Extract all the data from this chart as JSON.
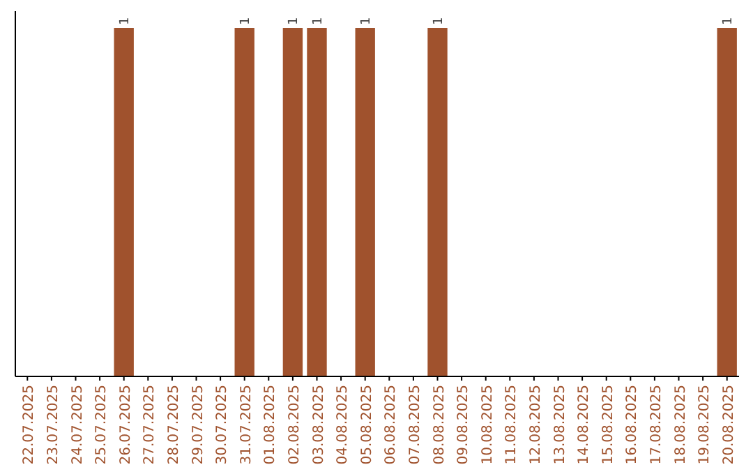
{
  "chart_data": {
    "type": "bar",
    "categories": [
      "22.07.2025",
      "23.07.2025",
      "24.07.2025",
      "25.07.2025",
      "26.07.2025",
      "27.07.2025",
      "28.07.2025",
      "29.07.2025",
      "30.07.2025",
      "31.07.2025",
      "01.08.2025",
      "02.08.2025",
      "03.08.2025",
      "04.08.2025",
      "05.08.2025",
      "06.08.2025",
      "07.08.2025",
      "08.08.2025",
      "09.08.2025",
      "10.08.2025",
      "11.08.2025",
      "12.08.2025",
      "13.08.2025",
      "14.08.2025",
      "15.08.2025",
      "16.08.2025",
      "17.08.2025",
      "18.08.2025",
      "19.08.2025",
      "20.08.2025"
    ],
    "values": [
      null,
      null,
      null,
      null,
      1,
      null,
      null,
      null,
      null,
      1,
      null,
      1,
      1,
      null,
      1,
      null,
      null,
      1,
      null,
      null,
      null,
      null,
      null,
      null,
      null,
      null,
      null,
      null,
      null,
      1
    ],
    "color": "#a0522d",
    "data_labels": true
  }
}
